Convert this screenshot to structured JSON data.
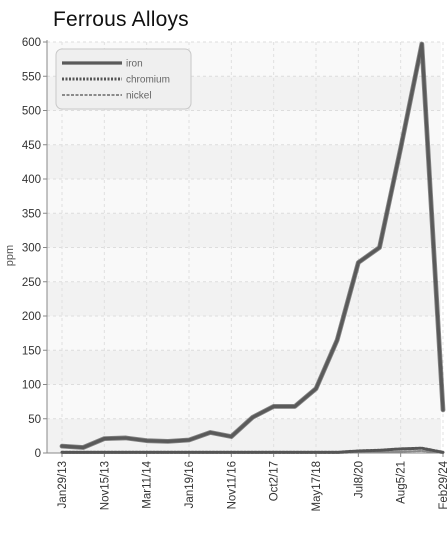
{
  "chart_data": {
    "type": "line",
    "title": "Ferrous Alloys",
    "xlabel": "",
    "ylabel": "ppm",
    "x_tick_labels": [
      "Jan29/13",
      "Nov15/13",
      "Mar11/14",
      "Jan19/16",
      "Nov11/16",
      "Oct2/17",
      "May17/18",
      "Jul8/20",
      "Aug5/21",
      "Feb29/24"
    ],
    "ylim": [
      0,
      600
    ],
    "y_ticks": [
      0,
      50,
      100,
      150,
      200,
      250,
      300,
      350,
      400,
      450,
      500,
      550,
      600
    ],
    "grid": true,
    "legend_position": "top-left",
    "series": [
      {
        "name": "iron",
        "color": "#5a5a5a",
        "style": "solid",
        "values": [
          10,
          8,
          21,
          22,
          18,
          17,
          19,
          30,
          24,
          52,
          68,
          68,
          94,
          165,
          278,
          300,
          445,
          597,
          63
        ]
      },
      {
        "name": "chromium",
        "color": "#555555",
        "style": "dotted",
        "values": [
          1,
          1,
          1,
          1,
          1,
          1,
          1,
          1,
          1,
          1,
          1,
          1,
          1,
          1,
          3,
          4,
          6,
          7,
          1
        ]
      },
      {
        "name": "nickel",
        "color": "#8a8a8a",
        "style": "dashed",
        "values": [
          0,
          0,
          0,
          0,
          0,
          0,
          0,
          0,
          0,
          0,
          0,
          0,
          0,
          0,
          1,
          1,
          2,
          3,
          0
        ]
      }
    ]
  }
}
